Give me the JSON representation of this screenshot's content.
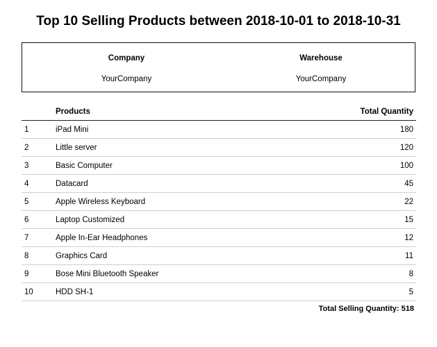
{
  "report": {
    "title": "Top 10 Selling Products between 2018-10-01 to 2018-10-31"
  },
  "info": {
    "company_label": "Company",
    "company_value": "YourCompany",
    "warehouse_label": "Warehouse",
    "warehouse_value": "YourCompany"
  },
  "table": {
    "headers": {
      "products": "Products",
      "total_quantity": "Total Quantity"
    },
    "rows": [
      {
        "index": "1",
        "product": "iPad Mini",
        "quantity": "180"
      },
      {
        "index": "2",
        "product": "Little server",
        "quantity": "120"
      },
      {
        "index": "3",
        "product": "Basic Computer",
        "quantity": "100"
      },
      {
        "index": "4",
        "product": "Datacard",
        "quantity": "45"
      },
      {
        "index": "5",
        "product": "Apple Wireless Keyboard",
        "quantity": "22"
      },
      {
        "index": "6",
        "product": "Laptop Customized",
        "quantity": "15"
      },
      {
        "index": "7",
        "product": "Apple In-Ear Headphones",
        "quantity": "12"
      },
      {
        "index": "8",
        "product": "Graphics Card",
        "quantity": "11"
      },
      {
        "index": "9",
        "product": "Bose Mini Bluetooth Speaker",
        "quantity": "8"
      },
      {
        "index": "10",
        "product": "HDD SH-1",
        "quantity": "5"
      }
    ]
  },
  "summary": {
    "total_text": "Total Selling Quantity: 518"
  }
}
